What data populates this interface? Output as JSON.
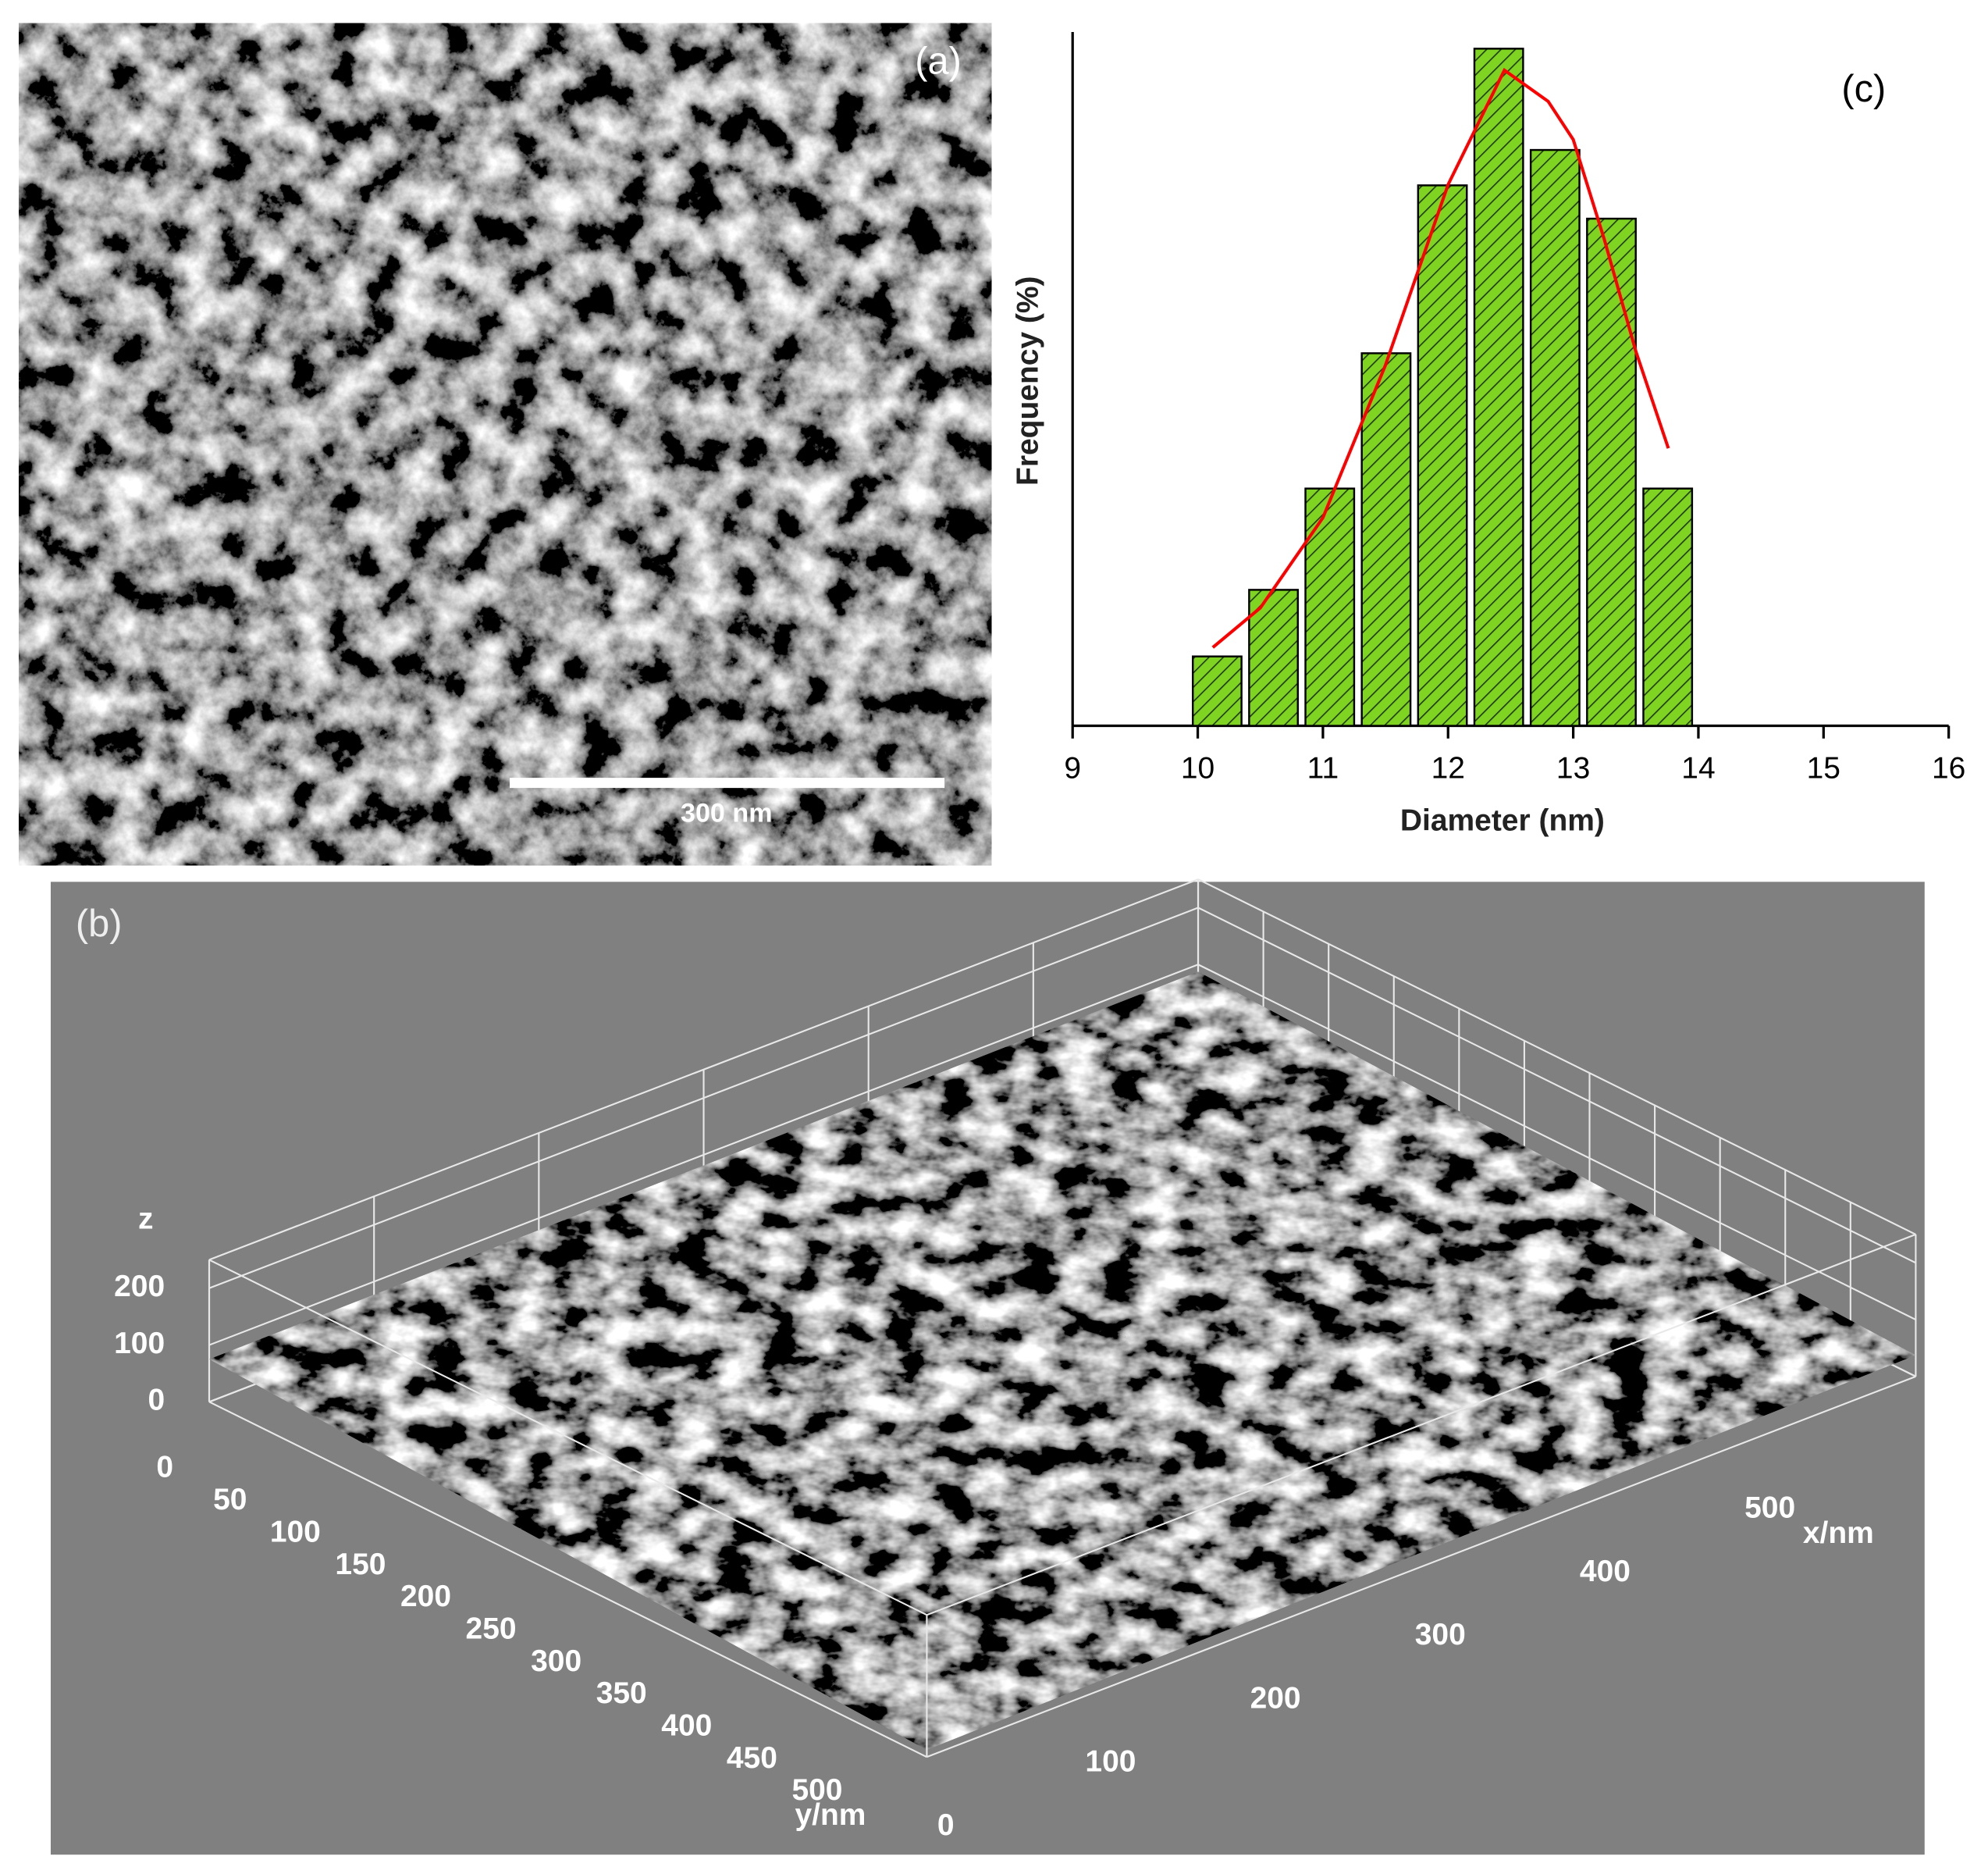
{
  "panels": {
    "a": {
      "label": "(a)",
      "scale_bar": "300 nm"
    }
  },
  "chart_data": [
    {
      "type": "histogram",
      "label": "(c)",
      "xlabel": "Diameter (nm)",
      "ylabel": "Frequency (%)",
      "bins": [
        9.93,
        10.38,
        10.83,
        11.28,
        11.73,
        12.18,
        12.63,
        13.08,
        13.53,
        13.98
      ],
      "values": [
        10,
        19.6,
        34.2,
        53.7,
        77.9,
        97.6,
        83,
        73.1,
        34.2
      ],
      "color": "#7fd321",
      "hatch_color": "#1f3a10",
      "xlim": [
        9,
        16
      ],
      "xticks": [
        9,
        10,
        11,
        12,
        13,
        14,
        15,
        16
      ],
      "ylim": [
        0,
        100
      ],
      "fit": {
        "color": "#ff0000",
        "x": [
          10.12,
          10.5,
          11,
          11.5,
          12,
          12.45,
          12.8,
          13,
          13.25,
          13.5,
          13.76
        ],
        "values": [
          11.3,
          17,
          30,
          52,
          78,
          94.5,
          90,
          84.5,
          70,
          54,
          40
        ]
      }
    },
    {
      "type": "surface3d",
      "label": "(b)",
      "xlabel": "x/nm",
      "ylabel": "y/nm",
      "zlabel": "z",
      "xlim": [
        0,
        600
      ],
      "xticks": [
        0,
        100,
        200,
        300,
        400,
        500
      ],
      "ylim": [
        0,
        550
      ],
      "yticks": [
        0,
        50,
        100,
        150,
        200,
        250,
        300,
        350,
        400,
        450,
        500
      ],
      "zlim": [
        0,
        250
      ],
      "zticks": [
        0,
        100,
        200
      ],
      "grid": true
    }
  ]
}
